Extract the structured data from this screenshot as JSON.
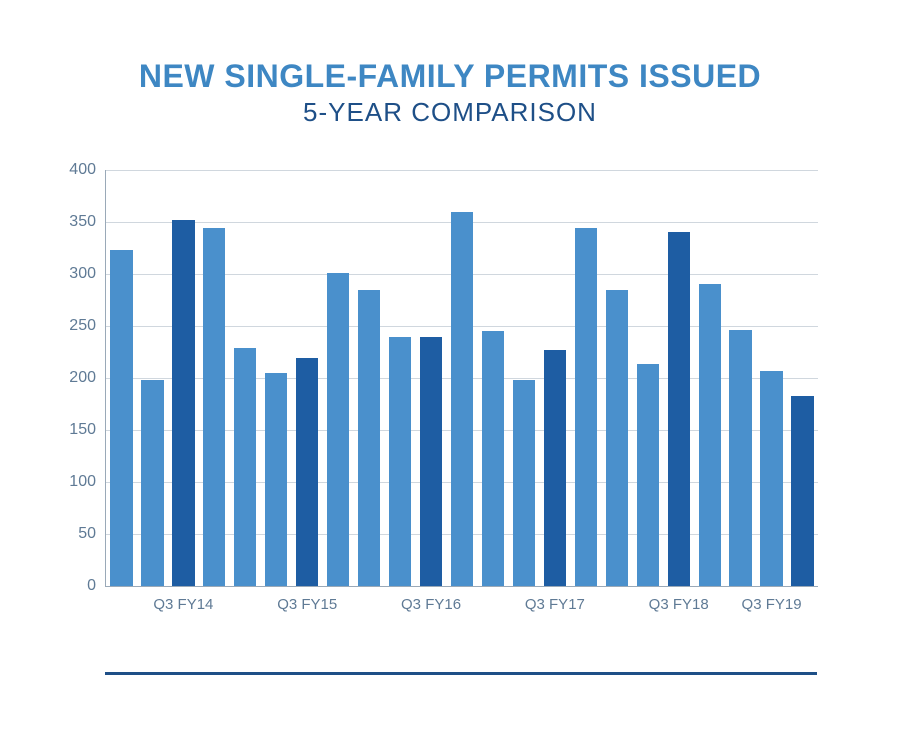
{
  "title": "NEW SINGLE-FAMILY PERMITS ISSUED",
  "subtitle": "5-YEAR COMPARISON",
  "title_color": "#3e87c3",
  "subtitle_color": "#1e4f87",
  "title_fontsize": 32,
  "subtitle_fontsize": 26,
  "background_color": "#ffffff",
  "footer_rule_color": "#1e4f87",
  "chart": {
    "type": "bar",
    "ylim": [
      0,
      400
    ],
    "ytick_step": 50,
    "yticks": [
      0,
      50,
      100,
      150,
      200,
      250,
      300,
      350,
      400
    ],
    "grid_color": "#d0d7de",
    "axis_color": "#9aa9b8",
    "tick_label_color": "#5f7a95",
    "tick_label_fontsize": 16,
    "bar_width_ratio": 0.72,
    "colors": {
      "quarter": "#4a90cc",
      "q3": "#1e5da3"
    },
    "x_labels": [
      {
        "at_index": 2,
        "text": "Q3 FY14"
      },
      {
        "at_index": 6,
        "text": "Q3 FY15"
      },
      {
        "at_index": 10,
        "text": "Q3 FY16"
      },
      {
        "at_index": 14,
        "text": "Q3 FY17"
      },
      {
        "at_index": 18,
        "text": "Q3 FY18"
      },
      {
        "at_index": 21,
        "text": "Q3 FY19"
      }
    ],
    "bars": [
      {
        "value": 323,
        "color": "#4a90cc"
      },
      {
        "value": 198,
        "color": "#4a90cc"
      },
      {
        "value": 352,
        "color": "#1e5da3"
      },
      {
        "value": 344,
        "color": "#4a90cc"
      },
      {
        "value": 229,
        "color": "#4a90cc"
      },
      {
        "value": 205,
        "color": "#4a90cc"
      },
      {
        "value": 219,
        "color": "#1e5da3"
      },
      {
        "value": 301,
        "color": "#4a90cc"
      },
      {
        "value": 285,
        "color": "#4a90cc"
      },
      {
        "value": 239,
        "color": "#4a90cc"
      },
      {
        "value": 239,
        "color": "#1e5da3"
      },
      {
        "value": 360,
        "color": "#4a90cc"
      },
      {
        "value": 245,
        "color": "#4a90cc"
      },
      {
        "value": 198,
        "color": "#4a90cc"
      },
      {
        "value": 227,
        "color": "#1e5da3"
      },
      {
        "value": 344,
        "color": "#4a90cc"
      },
      {
        "value": 285,
        "color": "#4a90cc"
      },
      {
        "value": 213,
        "color": "#4a90cc"
      },
      {
        "value": 340,
        "color": "#1e5da3"
      },
      {
        "value": 290,
        "color": "#4a90cc"
      },
      {
        "value": 246,
        "color": "#4a90cc"
      },
      {
        "value": 207,
        "color": "#4a90cc"
      },
      {
        "value": 183,
        "color": "#1e5da3"
      }
    ]
  }
}
